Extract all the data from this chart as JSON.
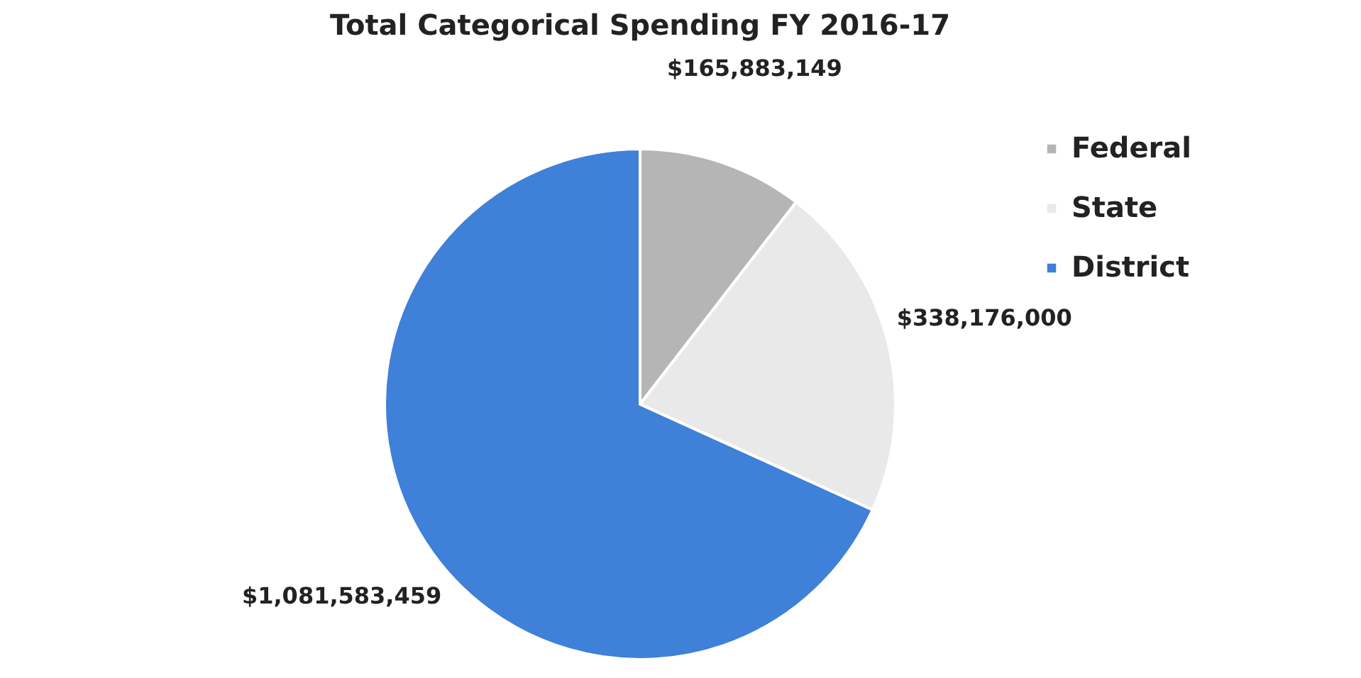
{
  "chart_data": {
    "type": "pie",
    "title": "Total Categorical Spending FY 2016-17",
    "categories": [
      "Federal",
      "State",
      "District"
    ],
    "values": [
      165883149,
      338176000,
      1081583459
    ],
    "colors": [
      "#b5b5b5",
      "#e9e9e9",
      "#3f80d8"
    ],
    "value_labels": [
      "$165,883,149",
      "$338,176,000",
      "$1,081,583,459"
    ],
    "legend": "right"
  }
}
